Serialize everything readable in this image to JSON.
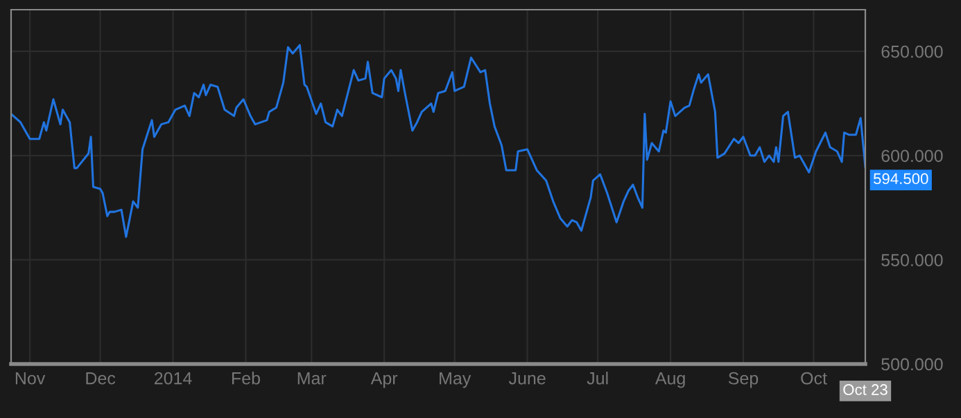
{
  "chart_data": {
    "type": "line",
    "x": [
      "2013-10-24",
      "2013-10-28",
      "2013-11-01",
      "2013-11-05",
      "2013-11-07",
      "2013-11-08",
      "2013-11-11",
      "2013-11-14",
      "2013-11-15",
      "2013-11-18",
      "2013-11-20",
      "2013-11-21",
      "2013-11-26",
      "2013-11-27",
      "2013-11-28",
      "2013-12-01",
      "2013-12-02",
      "2013-12-04",
      "2013-12-05",
      "2013-12-07",
      "2013-12-10",
      "2013-12-12",
      "2013-12-15",
      "2013-12-17",
      "2013-12-19",
      "2013-12-23",
      "2013-12-24",
      "2013-12-27",
      "2013-12-30",
      "2014-01-02",
      "2014-01-06",
      "2014-01-08",
      "2014-01-10",
      "2014-01-12",
      "2014-01-14",
      "2014-01-15",
      "2014-01-17",
      "2014-01-20",
      "2014-01-23",
      "2014-01-27",
      "2014-01-28",
      "2014-01-31",
      "2014-02-03",
      "2014-02-05",
      "2014-02-10",
      "2014-02-11",
      "2014-02-14",
      "2014-02-17",
      "2014-02-19",
      "2014-02-21",
      "2014-02-24",
      "2014-02-26",
      "2014-02-27",
      "2014-03-03",
      "2014-03-05",
      "2014-03-07",
      "2014-03-10",
      "2014-03-12",
      "2014-03-14",
      "2014-03-19",
      "2014-03-21",
      "2014-03-24",
      "2014-03-25",
      "2014-03-27",
      "2014-03-31",
      "2014-04-01",
      "2014-04-04",
      "2014-04-06",
      "2014-04-07",
      "2014-04-08",
      "2014-04-10",
      "2014-04-13",
      "2014-04-15",
      "2014-04-17",
      "2014-04-21",
      "2014-04-22",
      "2014-04-24",
      "2014-04-27",
      "2014-04-30",
      "2014-05-01",
      "2014-05-05",
      "2014-05-08",
      "2014-05-12",
      "2014-05-14",
      "2014-05-16",
      "2014-05-18",
      "2014-05-21",
      "2014-05-23",
      "2014-05-27",
      "2014-05-28",
      "2014-06-01",
      "2014-06-05",
      "2014-06-09",
      "2014-06-12",
      "2014-06-15",
      "2014-06-18",
      "2014-06-20",
      "2014-06-22",
      "2014-06-24",
      "2014-06-28",
      "2014-06-29",
      "2014-07-02",
      "2014-07-05",
      "2014-07-09",
      "2014-07-12",
      "2014-07-14",
      "2014-07-16",
      "2014-07-18",
      "2014-07-20",
      "2014-07-21",
      "2014-07-22",
      "2014-07-24",
      "2014-07-27",
      "2014-07-29",
      "2014-07-30",
      "2014-08-01",
      "2014-08-03",
      "2014-08-07",
      "2014-08-09",
      "2014-08-11",
      "2014-08-13",
      "2014-08-14",
      "2014-08-17",
      "2014-08-20",
      "2014-08-21",
      "2014-08-24",
      "2014-08-28",
      "2014-08-30",
      "2014-09-01",
      "2014-09-04",
      "2014-09-06",
      "2014-09-08",
      "2014-09-10",
      "2014-09-12",
      "2014-09-14",
      "2014-09-15",
      "2014-09-16",
      "2014-09-18",
      "2014-09-20",
      "2014-09-23",
      "2014-09-25",
      "2014-09-29",
      "2014-10-02",
      "2014-10-06",
      "2014-10-08",
      "2014-10-11",
      "2014-10-13",
      "2014-10-14",
      "2014-10-16",
      "2014-10-19",
      "2014-10-21",
      "2014-10-23"
    ],
    "series": [
      {
        "color": "#2174e0",
        "values": [
          620,
          616,
          608,
          608,
          616,
          612,
          627,
          615,
          622,
          616,
          594,
          594,
          601,
          609,
          585,
          584,
          582,
          571,
          573,
          573,
          574,
          561,
          578,
          575,
          603,
          617,
          609,
          615,
          616,
          622,
          624,
          619,
          630,
          628,
          634,
          629,
          634,
          633,
          622,
          619,
          623,
          627,
          619,
          615,
          617,
          621,
          623,
          635,
          652,
          649,
          653,
          634,
          633,
          620,
          625,
          616,
          614,
          622,
          619,
          641,
          636,
          637,
          645,
          630,
          628,
          637,
          641,
          637,
          631,
          641,
          629,
          612,
          616,
          621,
          625,
          621,
          630,
          631,
          640,
          631,
          633,
          647,
          640,
          641,
          625,
          614,
          605,
          593,
          593,
          602,
          603,
          593,
          588,
          578,
          570,
          566,
          569,
          568,
          564,
          580,
          588,
          591,
          582,
          568,
          578,
          583,
          586,
          580,
          575,
          620,
          598,
          606,
          602,
          612,
          611,
          626,
          619,
          623,
          624,
          632,
          639,
          635,
          639,
          621,
          599,
          601,
          608,
          606,
          609,
          600,
          600,
          604,
          597,
          600,
          597,
          604,
          597,
          619,
          621,
          599,
          600,
          592,
          602,
          611,
          604,
          602,
          597,
          611,
          610,
          610,
          618,
          594.5
        ]
      }
    ],
    "xlim": [
      "2013-10-24",
      "2014-10-23"
    ],
    "xticks": [
      {
        "value": "2013-11-01",
        "label": "Nov"
      },
      {
        "value": "2013-12-01",
        "label": "Dec"
      },
      {
        "value": "2014-01-01",
        "label": "2014"
      },
      {
        "value": "2014-02-01",
        "label": "Feb"
      },
      {
        "value": "2014-03-01",
        "label": "Mar"
      },
      {
        "value": "2014-04-01",
        "label": "Apr"
      },
      {
        "value": "2014-05-01",
        "label": "May"
      },
      {
        "value": "2014-06-01",
        "label": "June"
      },
      {
        "value": "2014-07-01",
        "label": "Jul"
      },
      {
        "value": "2014-08-01",
        "label": "Aug"
      },
      {
        "value": "2014-09-01",
        "label": "Sep"
      },
      {
        "value": "2014-10-01",
        "label": "Oct"
      }
    ],
    "ylim": [
      500,
      670
    ],
    "yticks": [
      {
        "value": 500,
        "label": "500.000"
      },
      {
        "value": 550,
        "label": "550.000"
      },
      {
        "value": 600,
        "label": "600.000"
      },
      {
        "value": 650,
        "label": "650.000"
      }
    ],
    "grid": true,
    "annotations": [
      {
        "text": "594.500",
        "x": "2014-10-23",
        "y": 594.5
      },
      "Oct 23"
    ]
  }
}
